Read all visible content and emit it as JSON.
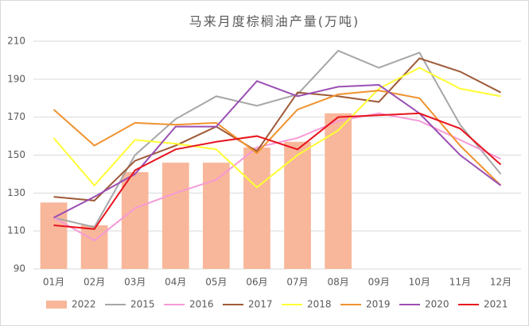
{
  "chart_data": {
    "type": "combo",
    "title": "马来月度棕榈油产量(万吨)",
    "categories": [
      "01月",
      "02月",
      "03月",
      "04月",
      "05月",
      "06月",
      "07月",
      "08月",
      "09月",
      "10月",
      "11月",
      "12月"
    ],
    "ylim": [
      90,
      210
    ],
    "yticks": [
      90,
      110,
      130,
      150,
      170,
      190,
      210
    ],
    "grid": true,
    "series": [
      {
        "name": "2022",
        "type": "bar",
        "color": "#f8b79a",
        "values": [
          125,
          113,
          141,
          146,
          146,
          154,
          157,
          172,
          null,
          null,
          null,
          null
        ]
      },
      {
        "name": "2015",
        "type": "line",
        "color": "#a6a6a6",
        "values": [
          117,
          112,
          150,
          169,
          181,
          176,
          182,
          205,
          196,
          204,
          166,
          140
        ]
      },
      {
        "name": "2016",
        "type": "line",
        "color": "#f59ad6",
        "values": [
          117,
          105,
          122,
          130,
          137,
          154,
          159,
          168,
          172,
          168,
          158,
          148
        ]
      },
      {
        "name": "2017",
        "type": "line",
        "color": "#9e5a37",
        "values": [
          128,
          126,
          147,
          155,
          165,
          152,
          183,
          181,
          178,
          201,
          194,
          183
        ]
      },
      {
        "name": "2018",
        "type": "line",
        "color": "#ffff33",
        "values": [
          159,
          134,
          158,
          156,
          153,
          133,
          150,
          163,
          185,
          196,
          185,
          181
        ]
      },
      {
        "name": "2019",
        "type": "line",
        "color": "#f0922e",
        "values": [
          174,
          155,
          167,
          166,
          167,
          151,
          174,
          182,
          184,
          180,
          155,
          134
        ]
      },
      {
        "name": "2020",
        "type": "line",
        "color": "#9b4fb4",
        "values": [
          117,
          128,
          140,
          165,
          165,
          189,
          181,
          186,
          187,
          172,
          150,
          134
        ]
      },
      {
        "name": "2021",
        "type": "line",
        "color": "#e8141f",
        "values": [
          113,
          111,
          142,
          153,
          157,
          160,
          153,
          170,
          171,
          172,
          164,
          145
        ]
      }
    ]
  }
}
